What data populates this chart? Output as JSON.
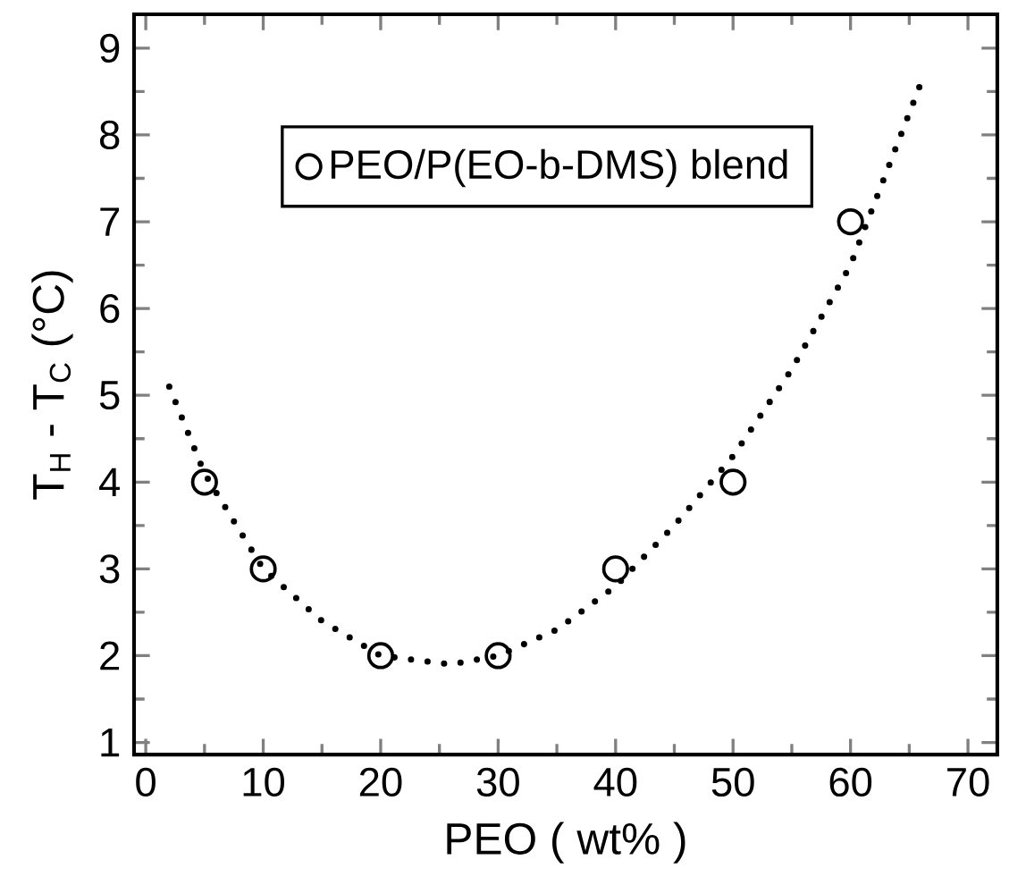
{
  "chart_data": {
    "type": "scatter",
    "xlabel": "PEO ( wt% )",
    "ylabel": "T$_{H}$ - T$_{C}$ (°C)",
    "xlim": [
      -1,
      72.5
    ],
    "ylim": [
      0.86,
      9.39
    ],
    "xticks": [
      0,
      10,
      20,
      30,
      40,
      50,
      60,
      70
    ],
    "yticks": [
      1,
      2,
      3,
      4,
      5,
      6,
      7,
      8,
      9
    ],
    "legend": "top left",
    "series": [
      {
        "name": "PEO/P(EO-b-DMS) blend",
        "marker": "circle",
        "color": "#000000",
        "x": [
          5,
          10,
          20,
          30,
          40,
          50,
          60
        ],
        "values": [
          4,
          3,
          2,
          2,
          3,
          4,
          7
        ]
      },
      {
        "type": "line",
        "line_style": "dotted",
        "color": "#000000",
        "x": [
          2,
          5,
          10,
          15,
          20,
          26,
          30,
          35,
          40,
          45,
          50,
          55,
          60,
          66
        ],
        "values": [
          5.1,
          4.1,
          3.0,
          2.4,
          2.0,
          1.9,
          2.0,
          2.3,
          2.8,
          3.5,
          4.3,
          5.3,
          6.5,
          8.6
        ]
      }
    ]
  }
}
